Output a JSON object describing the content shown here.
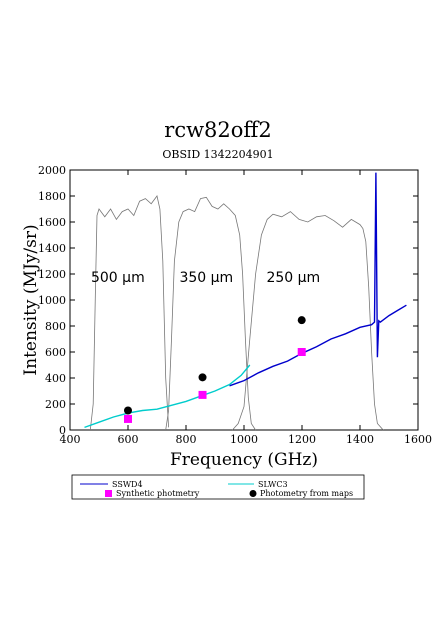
{
  "header": {
    "title": "rcw82off2",
    "subtitle": "OBSID 1342204901"
  },
  "chart_data": {
    "type": "line",
    "xlabel": "Frequency (GHz)",
    "ylabel": "Intensity (MJy/sr)",
    "xlim": [
      400,
      1600
    ],
    "ylim": [
      0,
      2000
    ],
    "x_ticks": [
      400,
      600,
      800,
      1000,
      1200,
      1400,
      1600
    ],
    "y_ticks": [
      0,
      200,
      400,
      600,
      800,
      1000,
      1200,
      1400,
      1600,
      1800,
      2000
    ],
    "band_labels": [
      {
        "text": "500 µm",
        "x": 565,
        "y": 1140
      },
      {
        "text": "350 µm",
        "x": 870,
        "y": 1140
      },
      {
        "text": "250 µm",
        "x": 1170,
        "y": 1140
      }
    ],
    "filters": [
      {
        "name": "500 µm",
        "x": [
          470,
          480,
          488,
          493,
          500,
          520,
          540,
          560,
          580,
          600,
          620,
          640,
          660,
          680,
          700,
          710,
          720,
          730,
          740
        ],
        "y": [
          0,
          200,
          1100,
          1650,
          1700,
          1640,
          1700,
          1620,
          1680,
          1700,
          1650,
          1760,
          1780,
          1740,
          1800,
          1700,
          1300,
          400,
          20
        ]
      },
      {
        "name": "350 µm",
        "x": [
          730,
          740,
          750,
          760,
          775,
          790,
          810,
          830,
          850,
          870,
          890,
          910,
          930,
          950,
          970,
          985,
          995,
          1005,
          1015,
          1025,
          1040
        ],
        "y": [
          0,
          150,
          700,
          1300,
          1600,
          1680,
          1700,
          1680,
          1780,
          1790,
          1720,
          1700,
          1740,
          1700,
          1650,
          1500,
          1200,
          700,
          250,
          50,
          0
        ]
      },
      {
        "name": "250 µm",
        "x": [
          960,
          980,
          1000,
          1020,
          1040,
          1060,
          1080,
          1100,
          1130,
          1160,
          1190,
          1220,
          1250,
          1280,
          1310,
          1340,
          1370,
          1400,
          1410,
          1420,
          1430,
          1440,
          1450,
          1460,
          1480
        ],
        "y": [
          0,
          50,
          180,
          700,
          1200,
          1500,
          1620,
          1660,
          1640,
          1680,
          1620,
          1600,
          1640,
          1650,
          1610,
          1560,
          1620,
          1580,
          1550,
          1450,
          1100,
          600,
          200,
          50,
          0
        ]
      }
    ],
    "series": [
      {
        "name": "SSWD4",
        "color": "#0000cc",
        "x": [
          950,
          1000,
          1050,
          1100,
          1150,
          1200,
          1250,
          1300,
          1350,
          1400,
          1440,
          1450,
          1455,
          1460,
          1465,
          1470,
          1500,
          1530,
          1560
        ],
        "y": [
          340,
          380,
          440,
          490,
          530,
          590,
          640,
          700,
          740,
          790,
          810,
          830,
          1980,
          560,
          840,
          830,
          880,
          920,
          960
        ]
      },
      {
        "name": "SLWC3",
        "color": "#00cccc",
        "x": [
          450,
          500,
          550,
          600,
          650,
          700,
          750,
          800,
          850,
          900,
          950,
          990,
          1020
        ],
        "y": [
          20,
          60,
          100,
          130,
          150,
          160,
          190,
          220,
          260,
          300,
          350,
          420,
          500
        ]
      }
    ],
    "synthetic_photometry": {
      "name": "Synthetic photmetry",
      "color": "#ff00ff",
      "x": [
        600,
        857,
        1199
      ],
      "y": [
        85,
        270,
        600
      ]
    },
    "map_photometry": {
      "name": "Photometry from maps",
      "color": "#000000",
      "x": [
        600,
        857,
        1199
      ],
      "y": [
        150,
        405,
        845
      ]
    },
    "legend_placement": "bottom"
  }
}
